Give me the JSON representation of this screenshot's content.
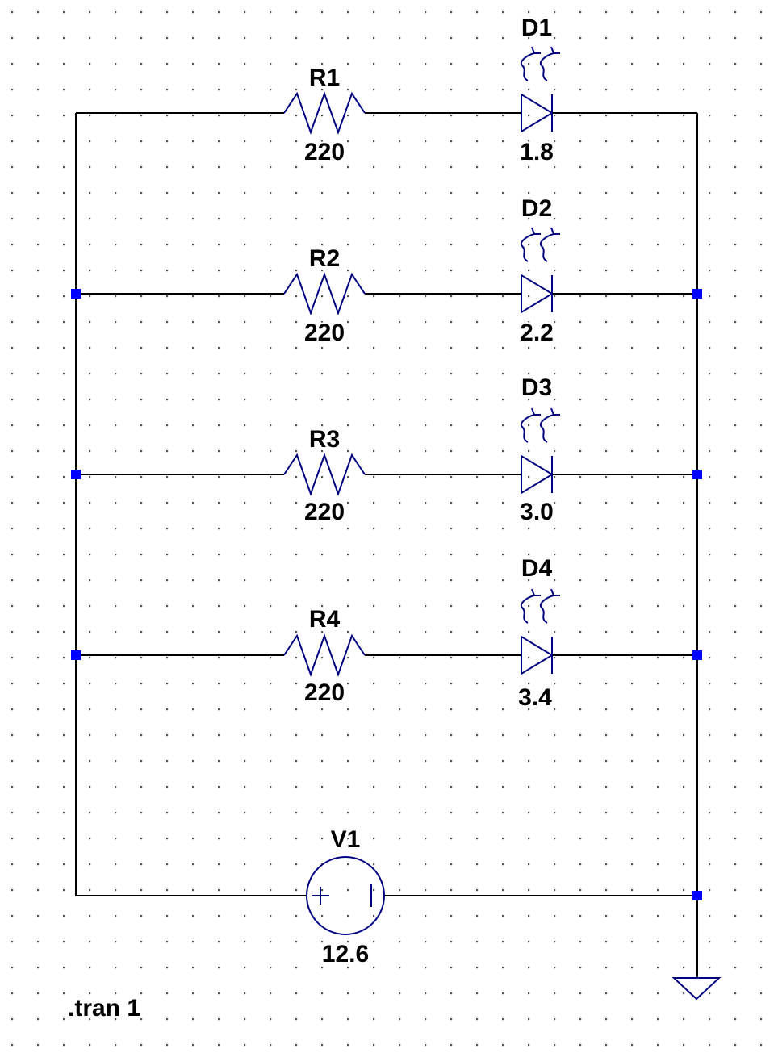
{
  "resistors": [
    {
      "name": "R1",
      "value": "220"
    },
    {
      "name": "R2",
      "value": "220"
    },
    {
      "name": "R3",
      "value": "220"
    },
    {
      "name": "R4",
      "value": "220"
    }
  ],
  "leds": [
    {
      "name": "D1",
      "value": "1.8"
    },
    {
      "name": "D2",
      "value": "2.2"
    },
    {
      "name": "D3",
      "value": "3.0"
    },
    {
      "name": "D4",
      "value": "3.4"
    }
  ],
  "source": {
    "name": "V1",
    "value": "12.6"
  },
  "directive": ".tran 1",
  "colors": {
    "wire": "#000000",
    "symbol": "#000080",
    "node": "#0000ff",
    "grid": "#555555"
  }
}
